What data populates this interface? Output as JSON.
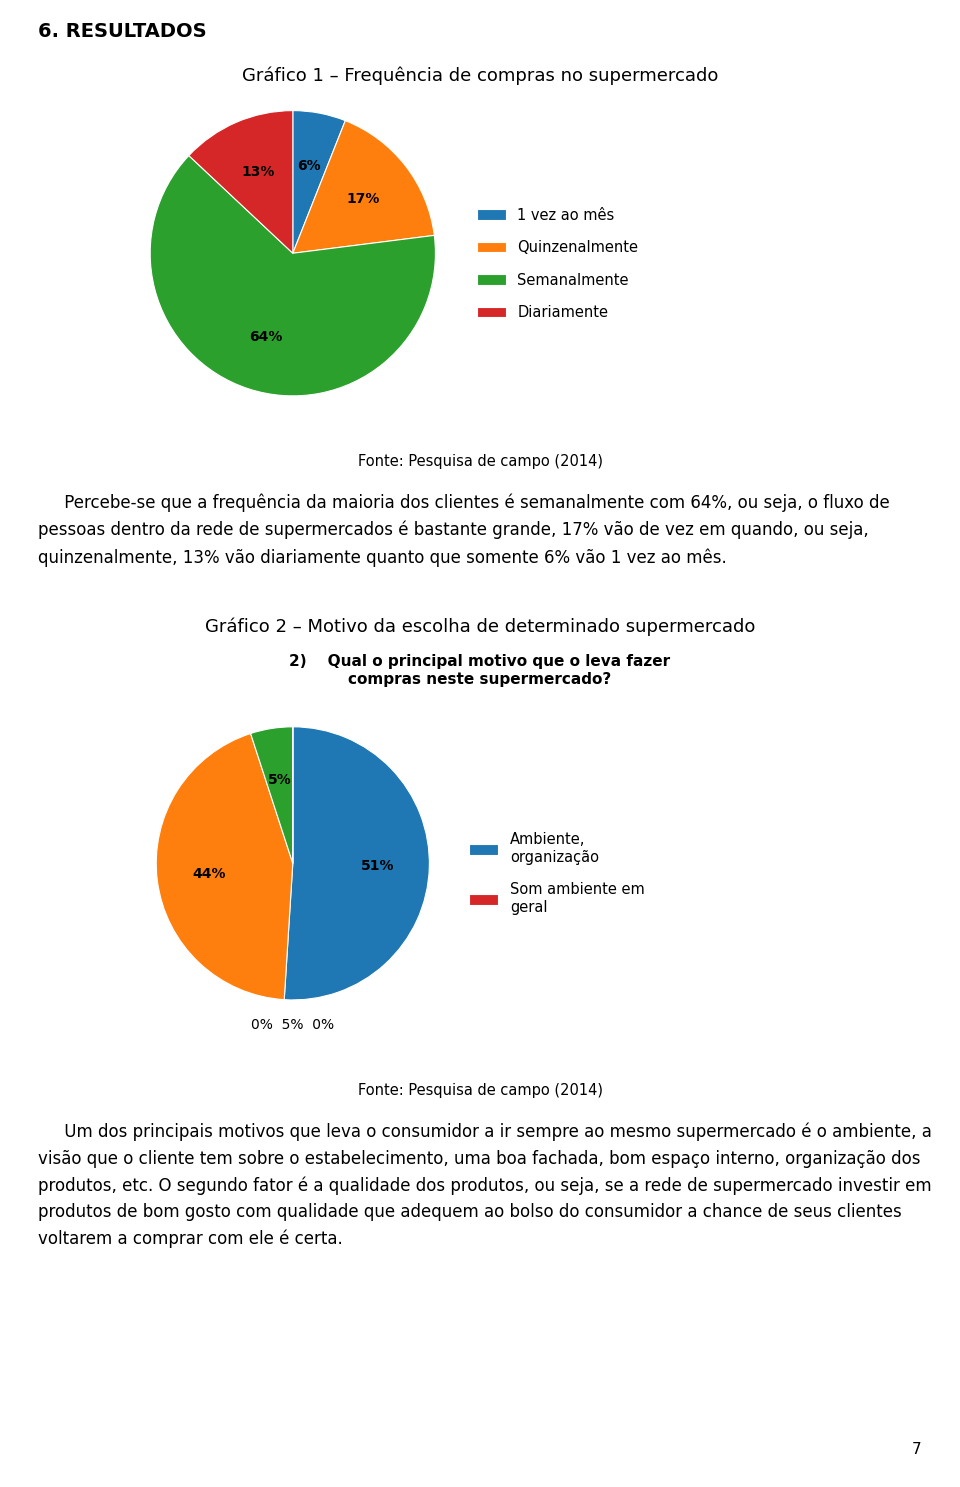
{
  "title": "6. RESULTADOS",
  "annotations": [
    "7"
  ],
  "chart_data": [
    {
      "type": "pie",
      "title": "Gráfico 1 – Frequência de compras no supermercado",
      "categories": [
        "1 vez ao mês",
        "Quinzenalmente",
        "Semanalmente",
        "Diariamente"
      ],
      "values": [
        6,
        17,
        64,
        13
      ],
      "value_labels": [
        "6%",
        "17%",
        "64%",
        "13%"
      ],
      "data_labels": true,
      "legend": "right",
      "source": "Fonte: Pesquisa de campo (2014)",
      "paragraph": "     Percebe-se que a frequência da maioria dos clientes é semanalmente com 64%, ou seja, o fluxo de pessoas dentro da rede de supermercados é bastante grande, 17% vão de vez em quando, ou seja, quinzenalmente, 13% vão diariamente quanto que somente 6% vão 1 vez ao mês."
    },
    {
      "type": "pie",
      "title": "Gráfico 2 – Motivo da escolha de determinado supermercado",
      "subtitle": "2)    Qual o principal motivo que o leva fazer\ncompras neste supermercado?",
      "categories": [
        "Ambiente,\norganização",
        null,
        null,
        "Som ambiente em\ngeral",
        null
      ],
      "values": [
        51,
        44,
        5,
        0,
        0
      ],
      "value_labels": [
        "51%",
        "44%",
        "5%",
        null,
        null
      ],
      "data_labels": true,
      "legend": "right",
      "annotations": [
        "0%  5%  0%"
      ],
      "source": "Fonte: Pesquisa de campo (2014)",
      "paragraph": "     Um dos principais motivos que leva o consumidor a ir sempre ao mesmo supermercado é o ambiente, a visão que o cliente tem sobre o estabelecimento, uma boa fachada, bom espaço interno, organização dos produtos, etc. O segundo fator é a qualidade dos produtos, ou seja, se a rede de supermercado investir em produtos de bom gosto com qualidade que adequem ao bolso do consumidor a chance de seus clientes voltarem a comprar com ele é certa."
    }
  ]
}
